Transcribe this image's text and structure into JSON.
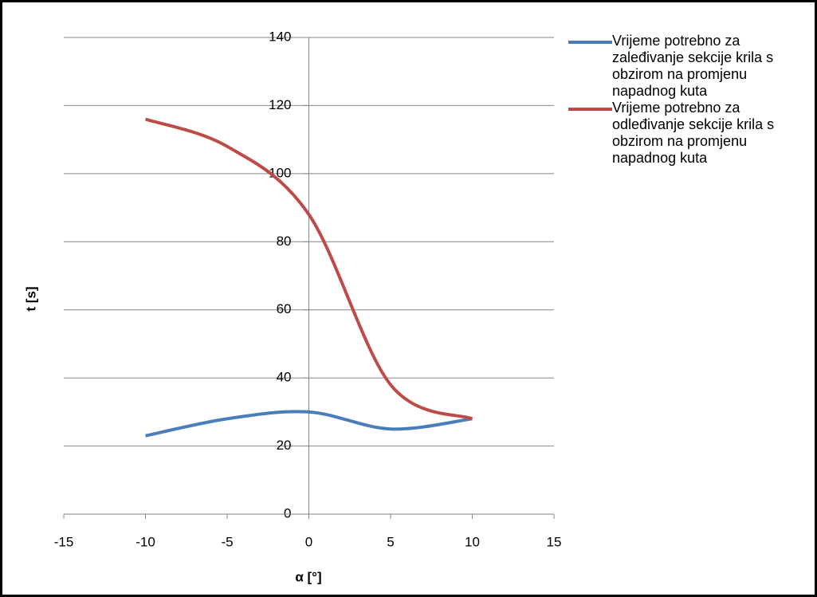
{
  "chart_data": {
    "type": "line",
    "x_label": "α [°]",
    "y_label": "t [s]",
    "x": [
      -10,
      -5,
      0,
      5,
      10
    ],
    "series": [
      {
        "name": "Vrijeme potrebno za zaleđivanje sekcije krila s obzirom na promjenu napadnog kuta",
        "color": "#4a7ebb",
        "values": [
          23,
          28,
          30,
          25,
          28
        ]
      },
      {
        "name": "Vrijeme potrebno za odleđivanje sekcije krila s obzirom na promjenu napadnog kuta",
        "color": "#be4b48",
        "values": [
          116,
          108,
          88,
          38,
          28
        ]
      }
    ],
    "xlim": [
      -15,
      15
    ],
    "xticks": [
      -15,
      -10,
      -5,
      0,
      5,
      10,
      15
    ],
    "ylim": [
      0,
      140
    ],
    "yticks": [
      0,
      20,
      40,
      60,
      80,
      100,
      120,
      140
    ],
    "grid": true,
    "smooth": true,
    "legend": "right"
  }
}
